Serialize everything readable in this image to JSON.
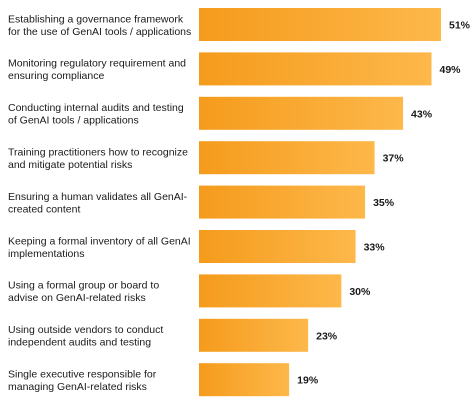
{
  "chart_data": {
    "type": "bar",
    "orientation": "horizontal",
    "categories": [
      [
        "Establishing a governance framework",
        "for the use of GenAI tools / applications"
      ],
      [
        "Monitoring regulatory requirement and",
        "ensuring compliance"
      ],
      [
        "Conducting internal audits and testing",
        "of GenAI tools / applications"
      ],
      [
        "Training practitioners how to recognize",
        "and mitigate potential risks"
      ],
      [
        "Ensuring a human validates all GenAI-",
        "created content"
      ],
      [
        "Keeping a formal inventory of all GenAI",
        "implementations"
      ],
      [
        "Using a formal group or board to",
        "advise on GenAI-related risks"
      ],
      [
        "Using outside vendors to conduct",
        "independent audits and testing"
      ],
      [
        "Single executive responsible for",
        "managing GenAI-related risks"
      ]
    ],
    "values": [
      51,
      49,
      43,
      37,
      35,
      33,
      30,
      23,
      19
    ],
    "value_labels": [
      "51%",
      "49%",
      "43%",
      "37%",
      "35%",
      "33%",
      "30%",
      "23%",
      "19%"
    ],
    "xlim": [
      0,
      51
    ],
    "grid": false,
    "colors": {
      "bar_start": "#f59b1c",
      "bar_end": "#fdb84a"
    }
  }
}
